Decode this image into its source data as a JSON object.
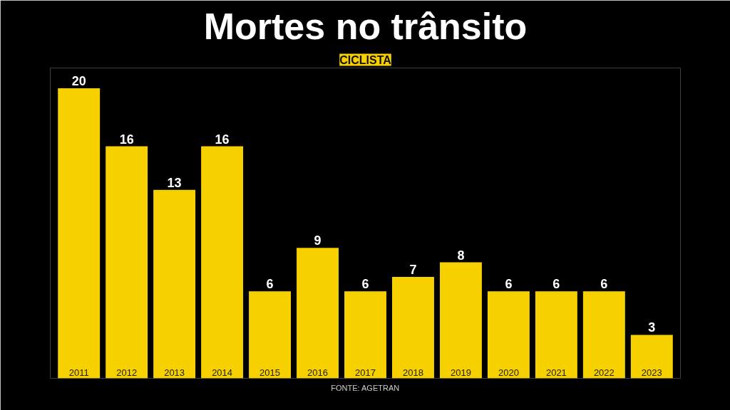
{
  "chart_data": {
    "type": "bar",
    "title": "Mortes no trânsito",
    "subtitle": "CICLISTA",
    "categories": [
      "2011",
      "2012",
      "2013",
      "2014",
      "2015",
      "2016",
      "2017",
      "2018",
      "2019",
      "2020",
      "2021",
      "2022",
      "2023"
    ],
    "values": [
      20,
      16,
      13,
      16,
      6,
      9,
      6,
      7,
      8,
      6,
      6,
      6,
      3
    ],
    "color": "#f7d000",
    "data_labels": true,
    "annotations": [
      "FONTE: AGETRAN"
    ]
  }
}
